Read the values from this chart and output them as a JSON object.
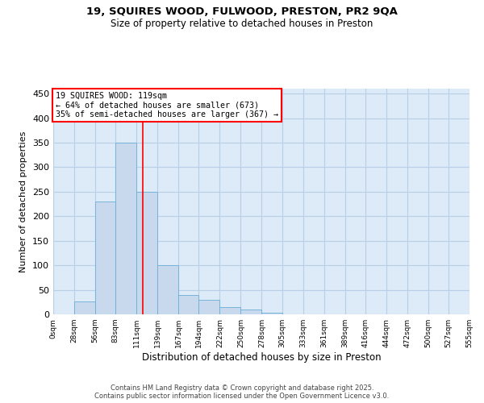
{
  "title_line1": "19, SQUIRES WOOD, FULWOOD, PRESTON, PR2 9QA",
  "title_line2": "Size of property relative to detached houses in Preston",
  "xlabel": "Distribution of detached houses by size in Preston",
  "ylabel": "Number of detached properties",
  "bar_values": [
    0,
    27,
    230,
    350,
    250,
    100,
    40,
    30,
    15,
    10,
    3,
    0,
    0,
    0,
    0,
    0,
    0,
    0,
    0,
    0
  ],
  "bin_edges": [
    0,
    28,
    56,
    83,
    111,
    139,
    167,
    194,
    222,
    250,
    278,
    305,
    333,
    361,
    389,
    416,
    444,
    472,
    500,
    527,
    555
  ],
  "tick_labels": [
    "0sqm",
    "28sqm",
    "56sqm",
    "83sqm",
    "111sqm",
    "139sqm",
    "167sqm",
    "194sqm",
    "222sqm",
    "250sqm",
    "278sqm",
    "305sqm",
    "333sqm",
    "361sqm",
    "389sqm",
    "416sqm",
    "444sqm",
    "472sqm",
    "500sqm",
    "527sqm",
    "555sqm"
  ],
  "bar_color": "#c8d9ee",
  "bar_edge_color": "#6aaed6",
  "grid_color": "#b8cfe8",
  "background_color": "#ddeaf7",
  "red_line_x": 119,
  "ylim": [
    0,
    460
  ],
  "yticks": [
    0,
    50,
    100,
    150,
    200,
    250,
    300,
    350,
    400,
    450
  ],
  "annotation_title": "19 SQUIRES WOOD: 119sqm",
  "annotation_line2": "← 64% of detached houses are smaller (673)",
  "annotation_line3": "35% of semi-detached houses are larger (367) →",
  "footer_line1": "Contains HM Land Registry data © Crown copyright and database right 2025.",
  "footer_line2": "Contains public sector information licensed under the Open Government Licence v3.0."
}
